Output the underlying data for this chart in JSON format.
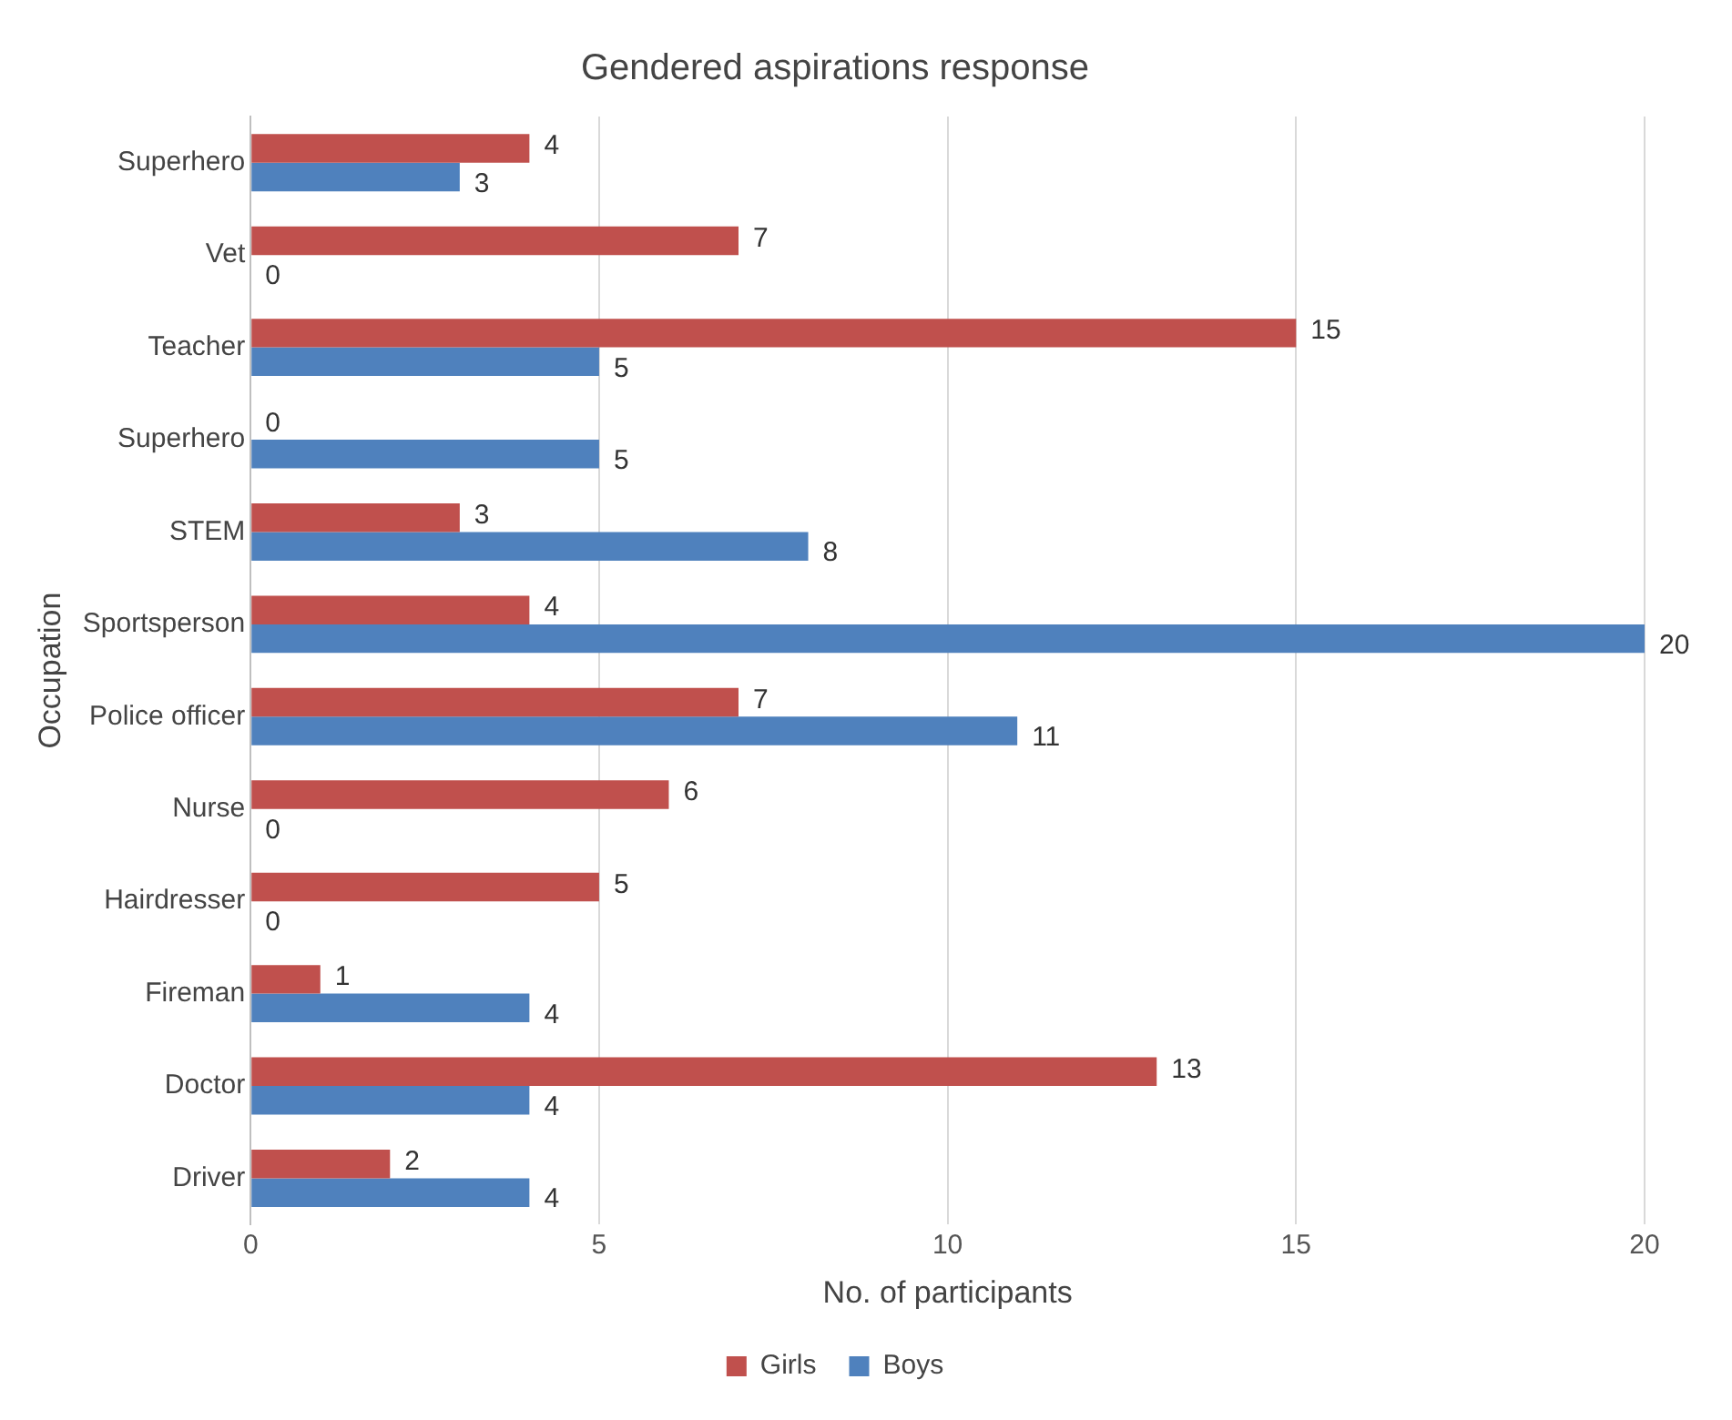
{
  "chart_data": {
    "type": "bar",
    "orientation": "horizontal",
    "title": "Gendered aspirations response",
    "xlabel": "No. of participants",
    "ylabel": "Occupation",
    "categories": [
      "Superhero",
      "Vet",
      "Teacher",
      "Superhero",
      "STEM",
      "Sportsperson",
      "Police officer",
      "Nurse",
      "Hairdresser",
      "Fireman",
      "Doctor",
      "Driver"
    ],
    "series": [
      {
        "name": "Girls",
        "color": "#c0504d",
        "values": [
          4,
          7,
          15,
          0,
          3,
          4,
          7,
          6,
          5,
          1,
          13,
          2
        ]
      },
      {
        "name": "Boys",
        "color": "#4f81bd",
        "values": [
          3,
          0,
          5,
          5,
          8,
          20,
          11,
          0,
          0,
          4,
          4,
          4
        ]
      }
    ],
    "xlim": [
      0,
      20
    ],
    "xticks": [
      0,
      5,
      10,
      15,
      20
    ],
    "grid": "x",
    "legend": "bottom",
    "data_labels": true
  }
}
